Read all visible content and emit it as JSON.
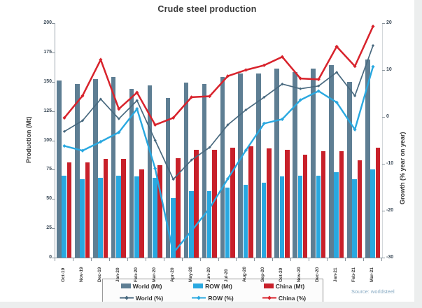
{
  "title": "Crude steel production",
  "source_note": "Source: worldsteel",
  "colors": {
    "world_bar": "#5e7e93",
    "row_bar": "#29a8e0",
    "china_bar": "#c8202a",
    "world_line": "#48697f",
    "row_line": "#29a8e0",
    "china_line": "#d8232c"
  },
  "axes": {
    "ylabel_left": "Production (Mt)",
    "ylabel_right": "Growth (% year on year)"
  },
  "legend": {
    "items": [
      {
        "label": "World (Mt)",
        "swatch": "bar",
        "color_key": "world_bar"
      },
      {
        "label": "ROW (Mt)",
        "swatch": "bar",
        "color_key": "row_bar"
      },
      {
        "label": "China (Mt)",
        "swatch": "bar",
        "color_key": "china_bar"
      },
      {
        "label": "World (%)",
        "swatch": "line",
        "color_key": "world_line"
      },
      {
        "label": "ROW (%)",
        "swatch": "line",
        "color_key": "row_line"
      },
      {
        "label": "China (%)",
        "swatch": "line",
        "color_key": "china_line"
      }
    ]
  },
  "chart_data": {
    "type": "bar",
    "subtype": "grouped bars with overlaid lines (dual axis)",
    "title": "Crude steel production",
    "categories": [
      "Oct-19",
      "Nov-19",
      "Dec-19",
      "Jan-20",
      "Feb-20",
      "Mar-20",
      "Apr-20",
      "May-20",
      "Jun-20",
      "Jul-20",
      "Aug-20",
      "Sep-20",
      "Oct-20",
      "Nov-20",
      "Dec-20",
      "Jan-21",
      "Feb-21",
      "Mar-21"
    ],
    "series": [
      {
        "name": "World (Mt)",
        "type": "bar",
        "axis": "left",
        "color_key": "world_bar",
        "values": [
          151,
          148,
          152,
          154,
          144,
          147,
          136,
          149,
          148,
          154,
          157,
          157,
          161,
          158,
          161,
          164,
          150,
          169
        ]
      },
      {
        "name": "ROW (Mt)",
        "type": "bar",
        "axis": "left",
        "color_key": "row_bar",
        "values": [
          70,
          67,
          68,
          70,
          69,
          68,
          51,
          57,
          57,
          60,
          62,
          64,
          69,
          70,
          70,
          73,
          67,
          75
        ]
      },
      {
        "name": "China (Mt)",
        "type": "bar",
        "axis": "left",
        "color_key": "china_bar",
        "values": [
          81,
          81,
          84,
          84,
          75,
          79,
          85,
          92,
          92,
          94,
          95,
          93,
          92,
          88,
          91,
          91,
          83,
          94
        ]
      },
      {
        "name": "World (%)",
        "type": "line",
        "axis": "right",
        "color_key": "world_line",
        "values": [
          -3.1,
          -0.8,
          3.8,
          -0.4,
          3.5,
          -5,
          -13.3,
          -9.2,
          -6.5,
          -1.7,
          1.5,
          4.2,
          7,
          6,
          6.6,
          9.5,
          4.5,
          15.2
        ]
      },
      {
        "name": "ROW (%)",
        "type": "line",
        "axis": "right",
        "color_key": "row_line",
        "values": [
          -6.2,
          -7.2,
          -5.3,
          -3.3,
          1.7,
          -11,
          -29,
          -24.3,
          -19.5,
          -13.2,
          -7.1,
          -1.4,
          -0.5,
          3.6,
          5.5,
          3.1,
          -2.7,
          10.7
        ]
      },
      {
        "name": "China (%)",
        "type": "line",
        "axis": "right",
        "color_key": "china_line",
        "values": [
          -0.2,
          4.5,
          12.2,
          1.7,
          5.2,
          -1.7,
          -0.2,
          4.2,
          4.4,
          8.7,
          10,
          11,
          12.8,
          8.2,
          8,
          15,
          10.8,
          19.3
        ]
      }
    ],
    "xlabel": "",
    "ylabel": "Production (Mt)",
    "ylabel_right": "Growth (% year on year)",
    "ylim_left": [
      0,
      200
    ],
    "ylim_right": [
      -30,
      20
    ],
    "yticks_left": [
      0,
      25,
      50,
      75,
      100,
      125,
      150,
      175,
      200
    ],
    "yticks_right": [
      20,
      10,
      0,
      -10,
      -20,
      -30
    ],
    "grid": false,
    "legend_position": "bottom"
  }
}
